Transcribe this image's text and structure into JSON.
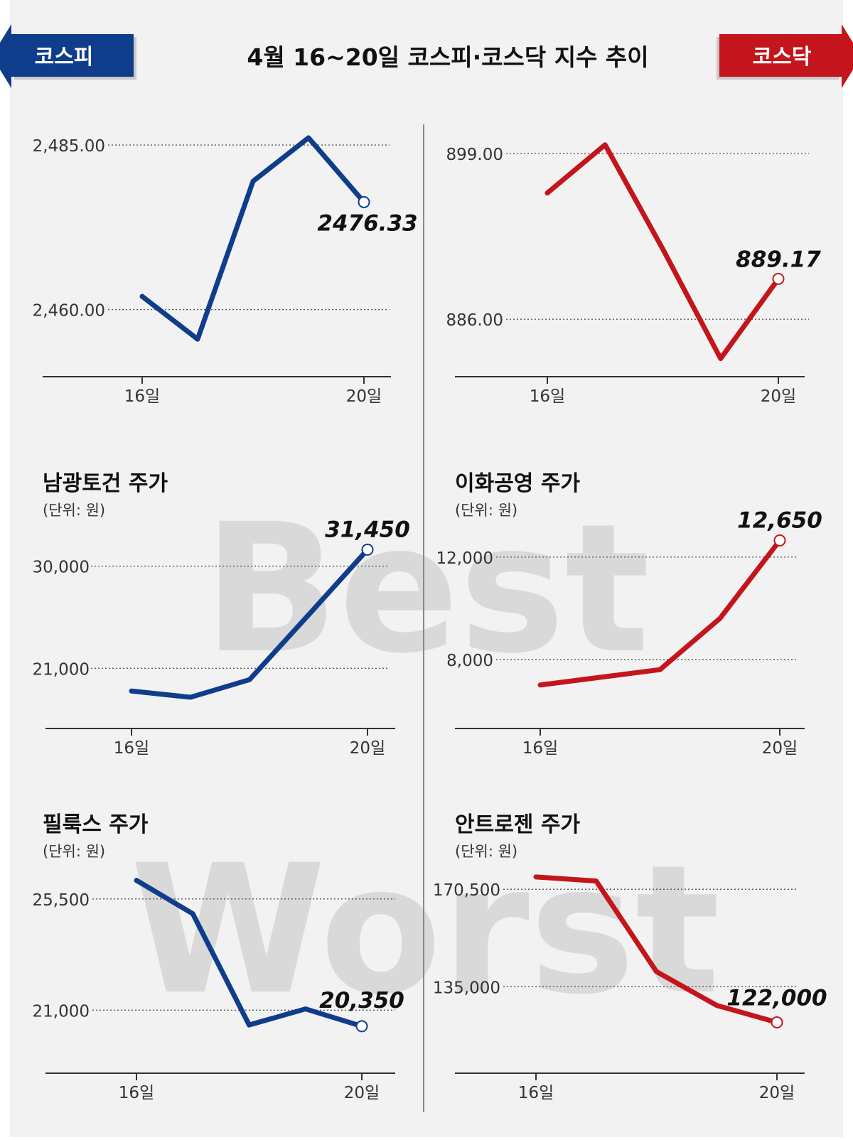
{
  "header": {
    "title": "4월 16~20일  코스피·코스닥 지수 추이",
    "left_tab": "코스피",
    "right_tab": "코스닥"
  },
  "colors": {
    "kospi": "#0f3d8c",
    "kosdaq": "#c4151c",
    "background": "#f2f2f2",
    "watermark": "#d9d9d9"
  },
  "watermark": {
    "best": "Best",
    "worst": "Worst"
  },
  "chart_data": [
    {
      "id": "kospi",
      "type": "line",
      "market": "kospi",
      "title": "",
      "unit": "",
      "x": [
        "16일",
        "17일",
        "18일",
        "19일",
        "20일"
      ],
      "x_tick_labels": [
        "16일",
        "20일"
      ],
      "values": [
        2462.0,
        2455.5,
        2479.5,
        2486.1,
        2476.33
      ],
      "ylim": [
        2449.8,
        2487.6
      ],
      "y_ticks": [
        2460,
        2485
      ],
      "y_tick_labels": [
        "2,460.00",
        "2,485.00"
      ],
      "last_label": "2476.33",
      "grid": "dotted"
    },
    {
      "id": "kosdaq",
      "type": "line",
      "market": "kosdaq",
      "title": "",
      "unit": "",
      "x": [
        "16일",
        "17일",
        "18일",
        "19일",
        "20일"
      ],
      "x_tick_labels": [
        "16일",
        "20일"
      ],
      "values": [
        895.9,
        899.68,
        891.5,
        882.92,
        889.17
      ],
      "ylim": [
        881.5,
        901.0
      ],
      "y_ticks": [
        886,
        899
      ],
      "y_tick_labels": [
        "886.00",
        "899.00"
      ],
      "last_label": "889.17",
      "grid": "dotted"
    },
    {
      "id": "namkwang",
      "type": "line",
      "market": "kospi",
      "title": "남광토건 주가",
      "unit": "(단위: 원)",
      "x": [
        "16일",
        "17일",
        "18일",
        "19일",
        "20일"
      ],
      "x_tick_labels": [
        "16일",
        "20일"
      ],
      "values": [
        19000,
        18450,
        20000,
        25700,
        31450
      ],
      "ylim": [
        15700,
        32600
      ],
      "y_ticks": [
        21000,
        30000
      ],
      "y_tick_labels": [
        "21,000",
        "30,000"
      ],
      "last_label": "31,450",
      "grid": "dotted"
    },
    {
      "id": "ewha",
      "type": "line",
      "market": "kosdaq",
      "title": "이화공영 주가",
      "unit": "(단위: 원)",
      "x": [
        "16일",
        "17일",
        "18일",
        "19일",
        "20일"
      ],
      "x_tick_labels": [
        "16일",
        "20일"
      ],
      "values": [
        7000,
        7300,
        7600,
        9600,
        12650
      ],
      "ylim": [
        5300,
        12800
      ],
      "y_ticks": [
        8000,
        12000
      ],
      "y_tick_labels": [
        "8,000",
        "12,000"
      ],
      "last_label": "12,650",
      "grid": "dotted"
    },
    {
      "id": "fillux",
      "type": "line",
      "market": "kospi",
      "title": "필룩스 주가",
      "unit": "(단위: 원)",
      "x": [
        "16일",
        "17일",
        "18일",
        "19일",
        "20일"
      ],
      "x_tick_labels": [
        "16일",
        "20일"
      ],
      "values": [
        26250,
        24900,
        20400,
        21050,
        20350
      ],
      "ylim": [
        18450,
        26500
      ],
      "y_ticks": [
        21000,
        25500
      ],
      "y_tick_labels": [
        "21,000",
        "25,500"
      ],
      "last_label": "20,350",
      "grid": "dotted"
    },
    {
      "id": "antrogen",
      "type": "line",
      "market": "kosdaq",
      "title": "안트로젠 주가",
      "unit": "(단위: 원)",
      "x": [
        "16일",
        "17일",
        "18일",
        "19일",
        "20일"
      ],
      "x_tick_labels": [
        "16일",
        "20일"
      ],
      "values": [
        175000,
        173500,
        140500,
        128200,
        122000
      ],
      "ylim": [
        103500,
        176000
      ],
      "y_ticks": [
        135000,
        170500
      ],
      "y_tick_labels": [
        "135,000",
        "170,500"
      ],
      "last_label": "122,000",
      "grid": "dotted"
    }
  ]
}
